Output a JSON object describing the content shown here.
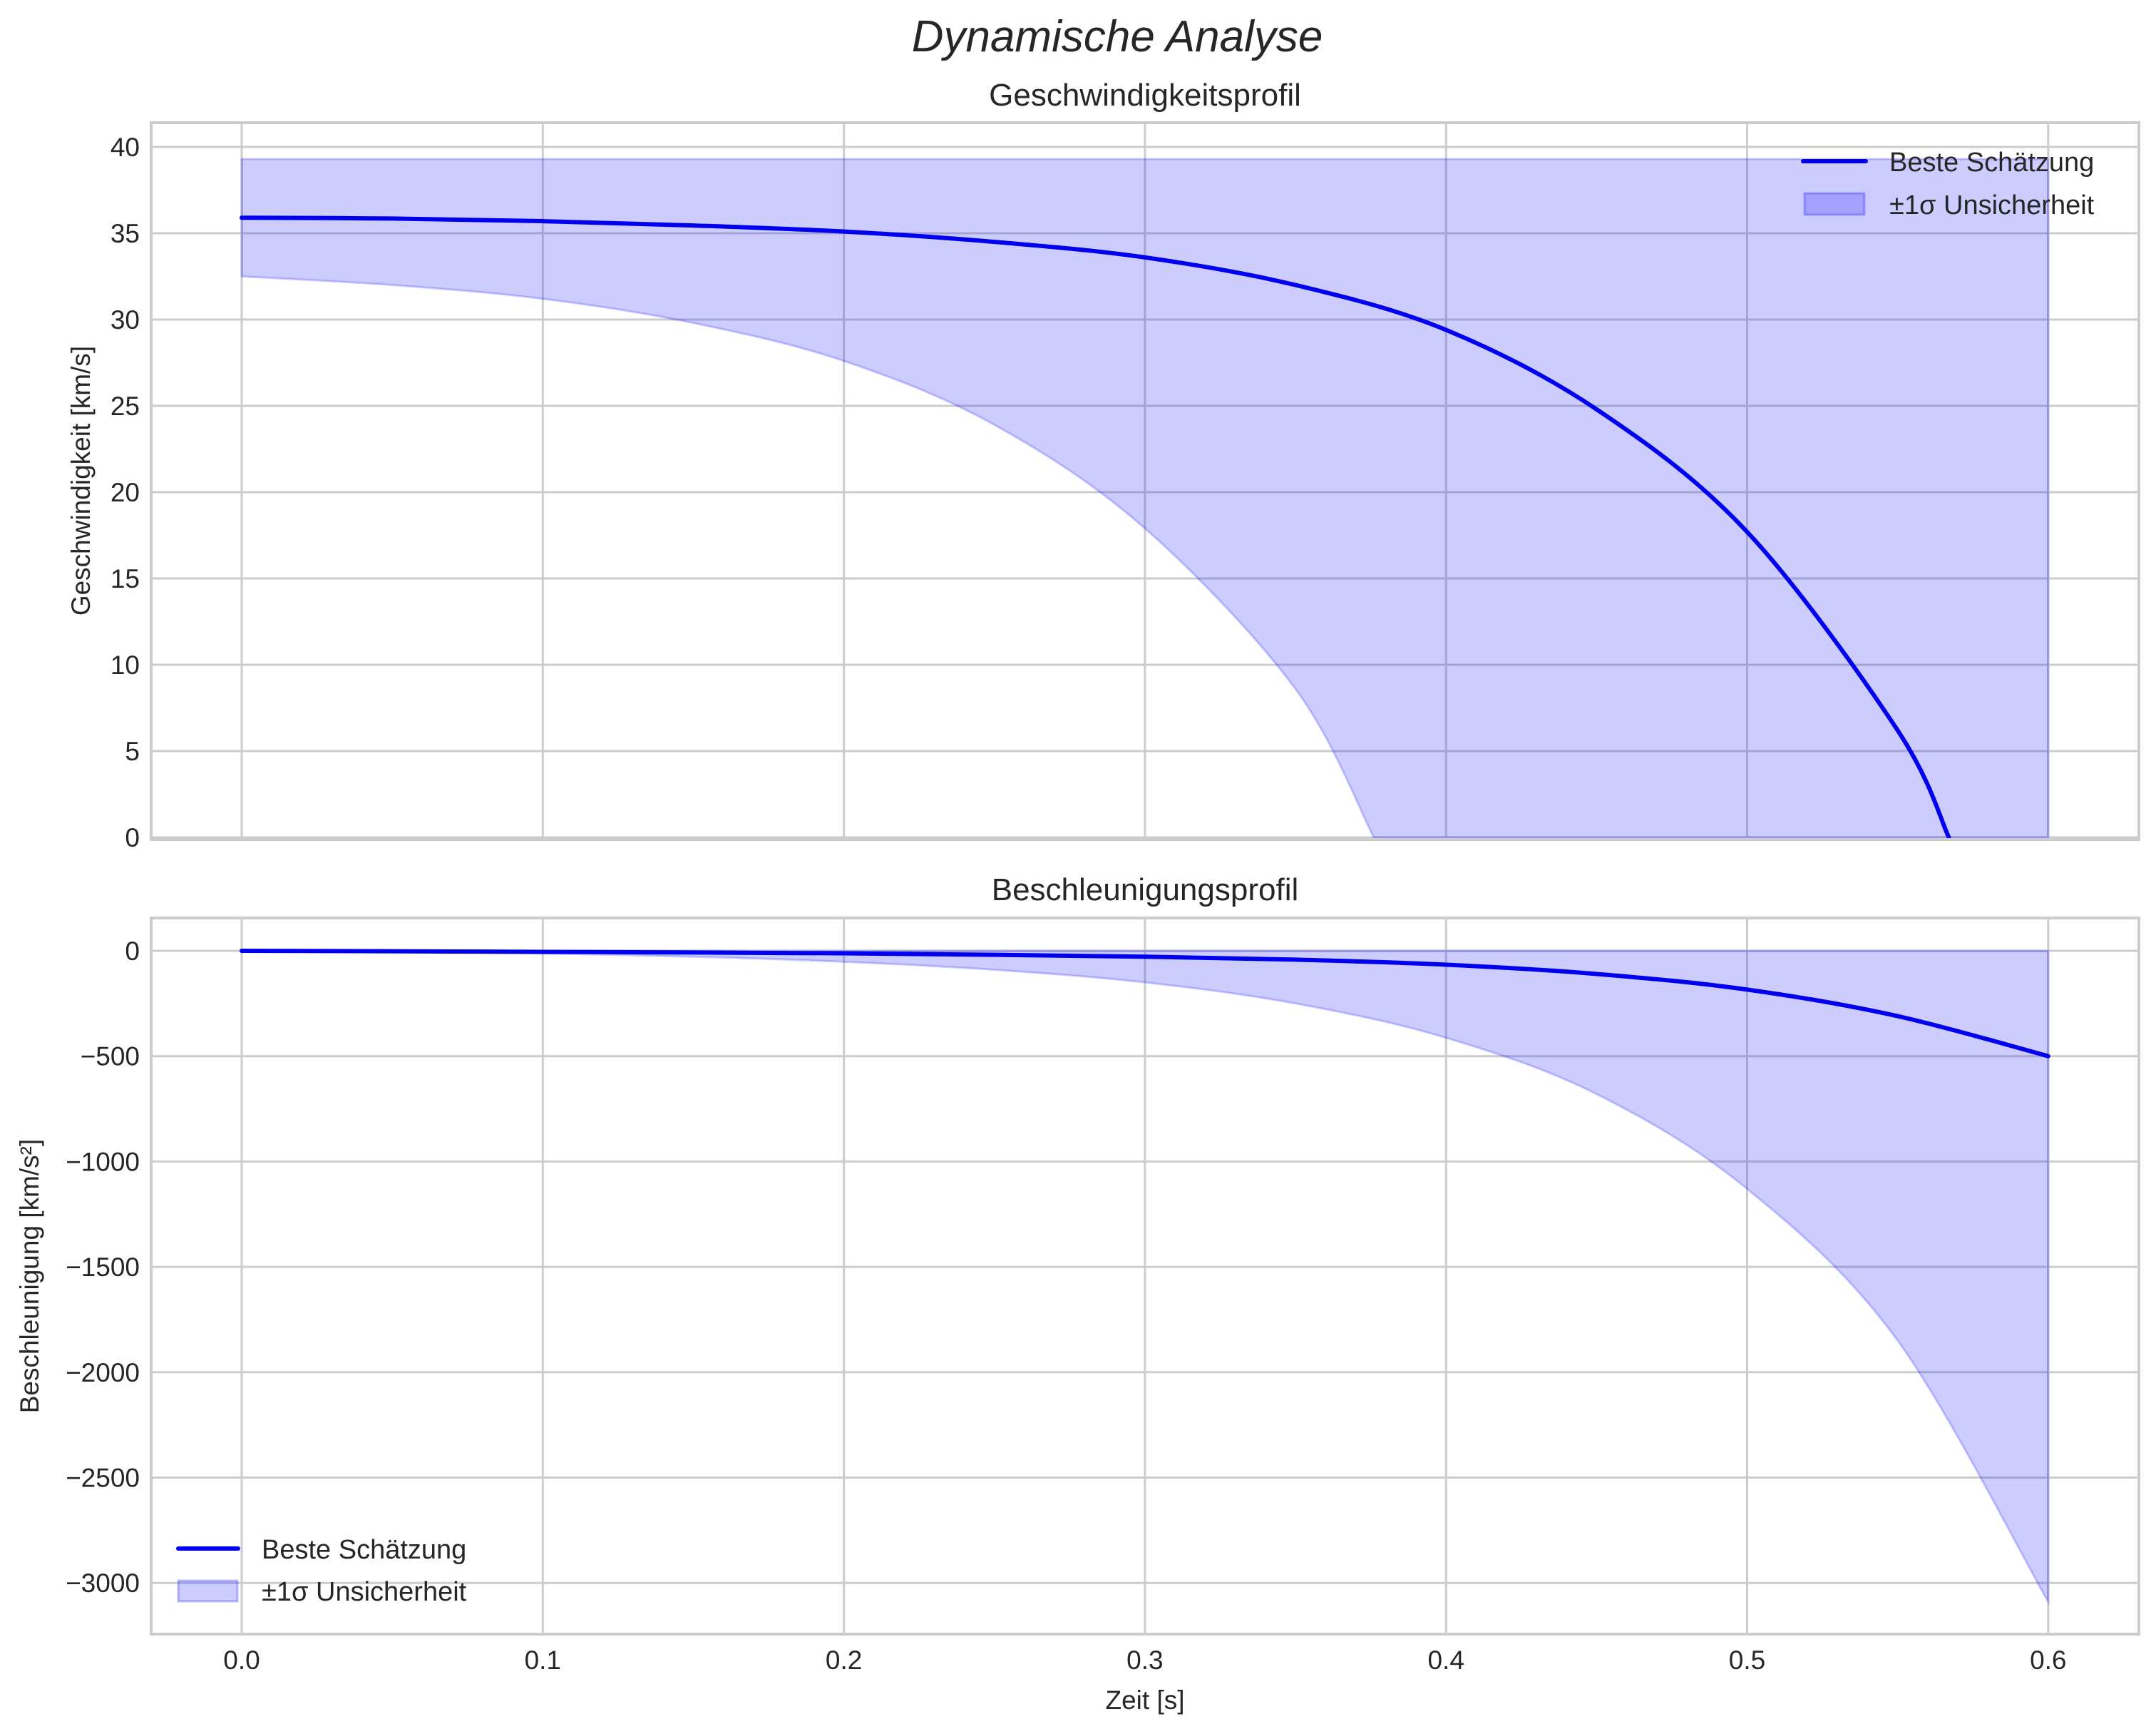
{
  "figure": {
    "suptitle": "Dynamische Analyse",
    "colors": {
      "line": "#0000ee",
      "band_fill": "rgba(0,0,255,0.2)",
      "grid": "#cccccc",
      "text": "#262626"
    }
  },
  "top": {
    "title": "Geschwindigkeitsprofil",
    "ylabel": "Geschwindigkeit [km/s]",
    "yticks": [
      "0",
      "5",
      "10",
      "15",
      "20",
      "25",
      "30",
      "35",
      "40"
    ],
    "legend": {
      "line_label": "Beste Schätzung",
      "band_label": "±1σ Unsicherheit"
    }
  },
  "bottom": {
    "title": "Beschleunigungsprofil",
    "ylabel": "Beschleunigung [km/s²]",
    "xlabel": "Zeit [s]",
    "yticks": [
      "0",
      "−500",
      "−1000",
      "−1500",
      "−2000",
      "−2500",
      "−3000"
    ],
    "xticks": [
      "0.0",
      "0.1",
      "0.2",
      "0.3",
      "0.4",
      "0.5",
      "0.6"
    ],
    "legend": {
      "line_label": "Beste Schätzung",
      "band_label": "±1σ Unsicherheit"
    }
  },
  "chart_data": [
    {
      "type": "line",
      "title": "Geschwindigkeitsprofil",
      "xlabel": "",
      "ylabel": "Geschwindigkeit [km/s]",
      "xlim": [
        -0.03,
        0.63
      ],
      "ylim": [
        0,
        41.5
      ],
      "grid": true,
      "legend_position": "upper right",
      "x": [
        0.0,
        0.05,
        0.1,
        0.15,
        0.2,
        0.25,
        0.3,
        0.35,
        0.4,
        0.45,
        0.5,
        0.55,
        0.567
      ],
      "series": [
        {
          "name": "Beste Schätzung",
          "values": [
            35.9,
            35.85,
            35.7,
            35.45,
            35.1,
            34.5,
            33.6,
            32.0,
            29.4,
            24.8,
            17.7,
            6.2,
            0.0
          ]
        }
      ],
      "band": {
        "name": "±1σ Unsicherheit",
        "upper": {
          "x": [
            0.0,
            0.6
          ],
          "values": [
            39.3,
            39.3
          ]
        },
        "lower": {
          "x": [
            0.0,
            0.05,
            0.1,
            0.15,
            0.2,
            0.25,
            0.3,
            0.35,
            0.376
          ],
          "values": [
            32.5,
            32.0,
            31.2,
            29.8,
            27.6,
            23.9,
            17.9,
            8.6,
            0.0
          ]
        },
        "floor": 0.0,
        "x_end": 0.6
      }
    },
    {
      "type": "line",
      "title": "Beschleunigungsprofil",
      "xlabel": "Zeit [s]",
      "ylabel": "Beschleunigung [km/s²]",
      "xlim": [
        -0.03,
        0.63
      ],
      "ylim": [
        -3230,
        150
      ],
      "grid": true,
      "legend_position": "lower left",
      "x": [
        0.0,
        0.05,
        0.1,
        0.15,
        0.2,
        0.25,
        0.3,
        0.35,
        0.4,
        0.45,
        0.5,
        0.55,
        0.6
      ],
      "series": [
        {
          "name": "Beste Schätzung",
          "values": [
            0,
            -2,
            -5,
            -8,
            -12,
            -19,
            -28,
            -42,
            -66,
            -110,
            -184,
            -310,
            -500
          ]
        }
      ],
      "band": {
        "name": "±1σ Unsicherheit",
        "upper": {
          "x": [
            0.0,
            0.6
          ],
          "values": [
            0,
            0
          ]
        },
        "lower": {
          "x": [
            0.0,
            0.05,
            0.1,
            0.15,
            0.2,
            0.25,
            0.3,
            0.35,
            0.4,
            0.45,
            0.5,
            0.55,
            0.6
          ],
          "values": [
            0,
            -4,
            -12,
            -28,
            -52,
            -90,
            -150,
            -250,
            -413,
            -680,
            -1130,
            -1850,
            -3090
          ]
        }
      }
    }
  ]
}
